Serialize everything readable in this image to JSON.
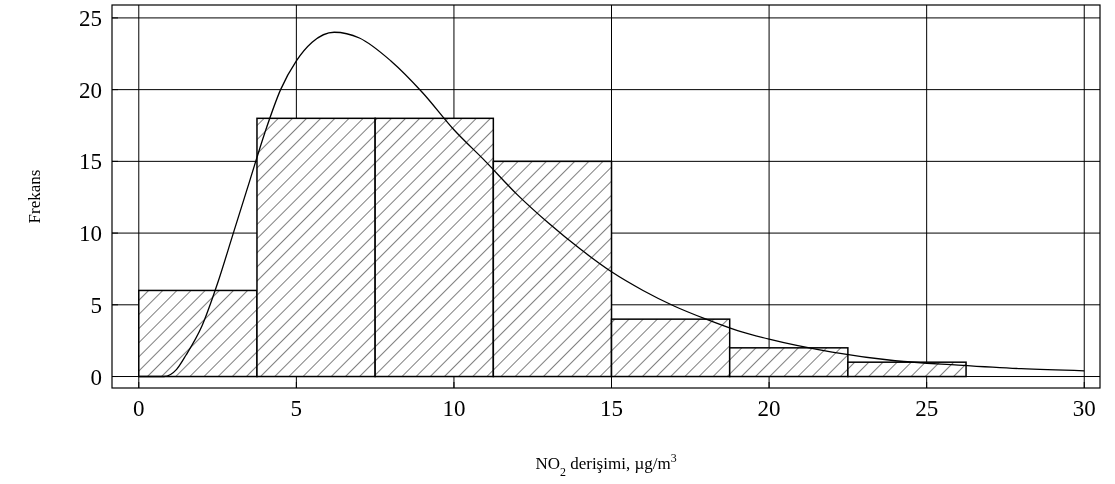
{
  "chart_data": {
    "type": "histogram",
    "xlabel": "NO$_{2}$ derişimi, µg/m$^{3}$",
    "ylabel": "Frekans",
    "xlim": [
      -0.85,
      30.5
    ],
    "ylim": [
      -0.8,
      25.9
    ],
    "xticks": [
      0,
      5,
      10,
      15,
      20,
      25,
      30
    ],
    "yticks": [
      0,
      5,
      10,
      15,
      20,
      25
    ],
    "grid": true,
    "series": [
      {
        "bins": [
          0,
          3.75,
          7.5,
          11.25,
          15,
          18.75,
          22.5,
          26.25
        ],
        "values": [
          6,
          18,
          18,
          15,
          4,
          2,
          1
        ],
        "color": "#000000"
      },
      {
        "type": "line",
        "color": "#000000",
        "x": [
          0,
          0.8,
          1.2,
          1.5,
          2,
          2.5,
          3,
          3.5,
          4,
          4.5,
          5,
          5.5,
          6.2,
          7,
          8,
          9,
          10,
          11,
          12,
          13,
          14,
          15,
          16,
          17,
          18,
          19,
          20,
          22,
          24,
          26,
          28,
          30
        ],
        "values": [
          0,
          0,
          0.5,
          1.5,
          3.5,
          6.5,
          10,
          13.5,
          17,
          20,
          22,
          23.3,
          24,
          23.6,
          22,
          19.8,
          17.2,
          15,
          12.7,
          10.7,
          8.9,
          7.3,
          6,
          4.9,
          4,
          3.2,
          2.6,
          1.7,
          1.1,
          0.8,
          0.55,
          0.4
        ]
      }
    ]
  }
}
